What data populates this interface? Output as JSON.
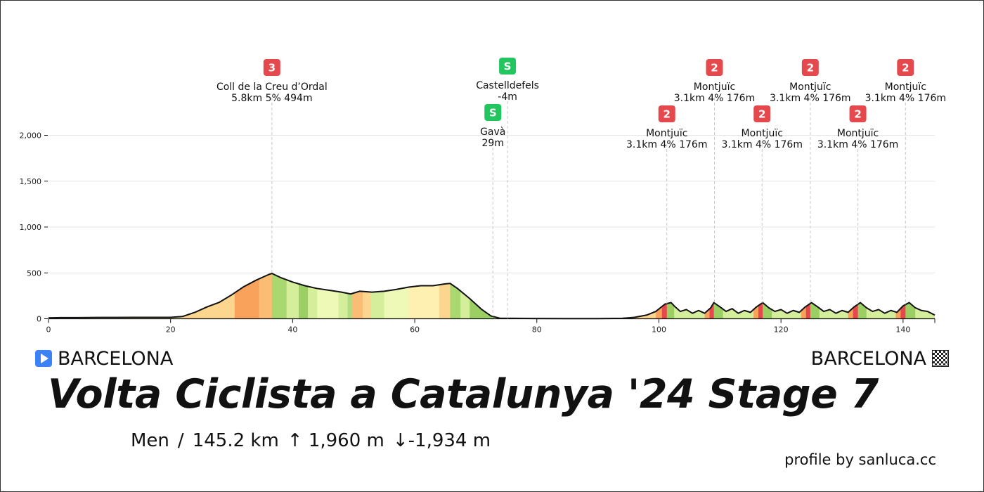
{
  "race": {
    "title": "Volta Ciclista a Catalunya '24 Stage 7",
    "start": "BARCELONA",
    "finish": "BARCELONA",
    "stats": {
      "category": "Men",
      "separator": "/",
      "distance": "145.2 km",
      "elevation_gain": "↑ 1,960 m",
      "elevation_loss": "↓-1,934 m"
    },
    "credit": "profile by sanluca.cc"
  },
  "icons": {
    "start": "play-icon",
    "finish": "checkered-flag-icon"
  },
  "colors": {
    "category_climb": "#e5484d",
    "sprint": "#22c55e",
    "start_marker": "#3b82f6",
    "profile_line": "#111111"
  },
  "chart_data": {
    "type": "area",
    "title": "",
    "xlabel": "",
    "ylabel": "",
    "xlim": [
      0,
      145.2
    ],
    "ylim": [
      0,
      2000
    ],
    "xticks": [
      0,
      20,
      40,
      60,
      80,
      100,
      120,
      140
    ],
    "yticks": [
      0,
      500,
      1000,
      1500,
      2000
    ],
    "xtick_labels": [
      "0",
      "20",
      "40",
      "60",
      "80",
      "100",
      "120",
      "140"
    ],
    "ytick_labels": [
      "0",
      "500",
      "1,000",
      "1,500",
      "2,000"
    ],
    "grid": "y",
    "series": [
      {
        "x": [
          0,
          2,
          5,
          8,
          11,
          14,
          17,
          20,
          22,
          24,
          26,
          28,
          30,
          32,
          34,
          36,
          36.6,
          38,
          40,
          42,
          44,
          46,
          48,
          49.5,
          51,
          53,
          55,
          57,
          59,
          61,
          63,
          65,
          65.8,
          67,
          69,
          71,
          72.5,
          74,
          76,
          80,
          85,
          90,
          94,
          96,
          98,
          99.5,
          101,
          102,
          102.5,
          103.5,
          104.5,
          105.5,
          106.5,
          107.5,
          108.5,
          109,
          110,
          111,
          112,
          113,
          114,
          115,
          116,
          117,
          118,
          119,
          120,
          121,
          122,
          123,
          124,
          125,
          126,
          127,
          128,
          129,
          130,
          131,
          132,
          133,
          134,
          135,
          136,
          137,
          138,
          139,
          140,
          141,
          142,
          143,
          144,
          145.2
        ],
        "y": [
          10,
          12,
          12,
          14,
          14,
          15,
          15,
          15,
          25,
          70,
          130,
          180,
          260,
          350,
          420,
          480,
          494,
          450,
          400,
          360,
          330,
          310,
          290,
          270,
          300,
          290,
          300,
          320,
          345,
          360,
          360,
          380,
          385,
          330,
          220,
          100,
          30,
          5,
          5,
          3,
          2,
          2,
          5,
          15,
          40,
          80,
          160,
          176,
          140,
          80,
          100,
          60,
          90,
          60,
          120,
          176,
          130,
          80,
          110,
          60,
          90,
          70,
          130,
          176,
          120,
          80,
          100,
          60,
          90,
          70,
          130,
          176,
          130,
          80,
          100,
          60,
          90,
          70,
          130,
          176,
          120,
          80,
          100,
          60,
          90,
          70,
          140,
          176,
          120,
          90,
          80,
          40
        ]
      }
    ],
    "segments": [
      {
        "x0": 0,
        "x1": 22,
        "color": "#fdf0b0"
      },
      {
        "x0": 22,
        "x1": 30.5,
        "color": "#fcd58f"
      },
      {
        "x0": 30.5,
        "x1": 34.5,
        "color": "#f9a25c"
      },
      {
        "x0": 34.5,
        "x1": 36.6,
        "color": "#fbbc74"
      },
      {
        "x0": 36.6,
        "x1": 39,
        "color": "#a9d870"
      },
      {
        "x0": 39,
        "x1": 41,
        "color": "#d4ee9c"
      },
      {
        "x0": 41,
        "x1": 42.5,
        "color": "#9ccf63"
      },
      {
        "x0": 42.5,
        "x1": 44,
        "color": "#d4ee9c"
      },
      {
        "x0": 44,
        "x1": 47.5,
        "color": "#eef8b7"
      },
      {
        "x0": 47.5,
        "x1": 49,
        "color": "#d4ee9c"
      },
      {
        "x0": 49,
        "x1": 49.7,
        "color": "#b2dc80"
      },
      {
        "x0": 49.7,
        "x1": 51.5,
        "color": "#fbbc74"
      },
      {
        "x0": 51.5,
        "x1": 52.8,
        "color": "#fcd58f"
      },
      {
        "x0": 52.8,
        "x1": 55,
        "color": "#d4ee9c"
      },
      {
        "x0": 55,
        "x1": 59,
        "color": "#eef8b7"
      },
      {
        "x0": 59,
        "x1": 64,
        "color": "#fdf0b0"
      },
      {
        "x0": 64,
        "x1": 65.8,
        "color": "#fcd58f"
      },
      {
        "x0": 65.8,
        "x1": 67.5,
        "color": "#a9d870"
      },
      {
        "x0": 67.5,
        "x1": 69,
        "color": "#d4ee9c"
      },
      {
        "x0": 69,
        "x1": 73,
        "color": "#9ccf63"
      },
      {
        "x0": 73,
        "x1": 94,
        "color": "#fdf0b0"
      },
      {
        "x0": 94,
        "x1": 99.5,
        "color": "#fcd58f"
      },
      {
        "x0": 99.5,
        "x1": 100.5,
        "color": "#f9a25c"
      },
      {
        "x0": 100.5,
        "x1": 101.3,
        "color": "#e5484d"
      },
      {
        "x0": 101.3,
        "x1": 102.5,
        "color": "#9ccf63"
      },
      {
        "x0": 102.5,
        "x1": 107.5,
        "color": "#d4ee9c"
      },
      {
        "x0": 107.5,
        "x1": 108.3,
        "color": "#f9a25c"
      },
      {
        "x0": 108.3,
        "x1": 109,
        "color": "#e5484d"
      },
      {
        "x0": 109,
        "x1": 110.5,
        "color": "#9ccf63"
      },
      {
        "x0": 110.5,
        "x1": 115.5,
        "color": "#d4ee9c"
      },
      {
        "x0": 115.5,
        "x1": 116.3,
        "color": "#f9a25c"
      },
      {
        "x0": 116.3,
        "x1": 117,
        "color": "#e5484d"
      },
      {
        "x0": 117,
        "x1": 118.5,
        "color": "#9ccf63"
      },
      {
        "x0": 118.5,
        "x1": 123.3,
        "color": "#d4ee9c"
      },
      {
        "x0": 123.3,
        "x1": 124.1,
        "color": "#f9a25c"
      },
      {
        "x0": 124.1,
        "x1": 124.8,
        "color": "#e5484d"
      },
      {
        "x0": 124.8,
        "x1": 126.3,
        "color": "#9ccf63"
      },
      {
        "x0": 126.3,
        "x1": 131,
        "color": "#d4ee9c"
      },
      {
        "x0": 131,
        "x1": 131.8,
        "color": "#f9a25c"
      },
      {
        "x0": 131.8,
        "x1": 132.6,
        "color": "#e5484d"
      },
      {
        "x0": 132.6,
        "x1": 134,
        "color": "#9ccf63"
      },
      {
        "x0": 134,
        "x1": 138.8,
        "color": "#d4ee9c"
      },
      {
        "x0": 138.8,
        "x1": 139.6,
        "color": "#f9a25c"
      },
      {
        "x0": 139.6,
        "x1": 140.4,
        "color": "#e5484d"
      },
      {
        "x0": 140.4,
        "x1": 142,
        "color": "#9ccf63"
      },
      {
        "x0": 142,
        "x1": 145.2,
        "color": "#d4ee9c"
      }
    ],
    "annotations": [
      {
        "type": "climb",
        "category": "3",
        "name": "Coll de la Creu d’Ordal",
        "details": "5.8km 5% 494m",
        "x": 36.6,
        "level": 0
      },
      {
        "type": "sprint",
        "category": "S",
        "name": "Castelldefels",
        "details": "-4m",
        "x": 75.2,
        "level": 0
      },
      {
        "type": "sprint",
        "category": "S",
        "name": "Gavà",
        "details": "29m",
        "x": 72.8,
        "level": 1
      },
      {
        "type": "climb",
        "category": "2",
        "name": "Montjuïc",
        "details": "3.1km 4% 176m",
        "x": 101.3,
        "level": 1
      },
      {
        "type": "climb",
        "category": "2",
        "name": "Montjuïc",
        "details": "3.1km 4% 176m",
        "x": 109.1,
        "level": 0
      },
      {
        "type": "climb",
        "category": "2",
        "name": "Montjuïc",
        "details": "3.1km 4% 176m",
        "x": 116.9,
        "level": 1
      },
      {
        "type": "climb",
        "category": "2",
        "name": "Montjuïc",
        "details": "3.1km 4% 176m",
        "x": 124.8,
        "level": 0
      },
      {
        "type": "climb",
        "category": "2",
        "name": "Montjuïc",
        "details": "3.1km 4% 176m",
        "x": 132.6,
        "level": 1
      },
      {
        "type": "climb",
        "category": "2",
        "name": "Montjuïc",
        "details": "3.1km 4% 176m",
        "x": 140.4,
        "level": 0
      }
    ]
  }
}
